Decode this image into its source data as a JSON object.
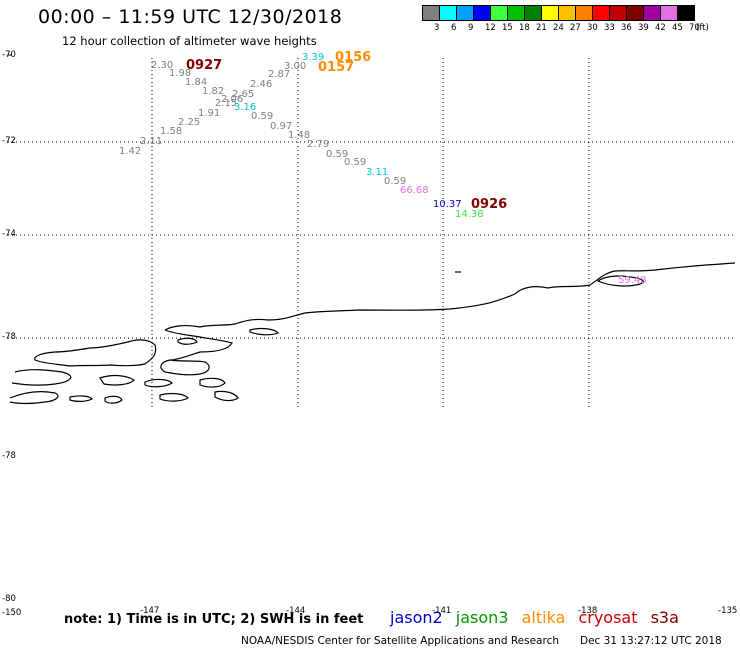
{
  "header": {
    "title": "00:00 – 11:59 UTC 12/30/2018",
    "subtitle": "12 hour collection of altimeter wave heights"
  },
  "legend": {
    "bins": [
      {
        "label": "3",
        "color": "#808080"
      },
      {
        "label": "6",
        "color": "#00ffff"
      },
      {
        "label": "9",
        "color": "#00a0ff"
      },
      {
        "label": "12",
        "color": "#0000ff"
      },
      {
        "label": "15",
        "color": "#40ff40"
      },
      {
        "label": "18",
        "color": "#00c000"
      },
      {
        "label": "21",
        "color": "#008000"
      },
      {
        "label": "24",
        "color": "#ffff00"
      },
      {
        "label": "27",
        "color": "#ffc000"
      },
      {
        "label": "30",
        "color": "#ff8000"
      },
      {
        "label": "33",
        "color": "#ff0000"
      },
      {
        "label": "36",
        "color": "#c00000"
      },
      {
        "label": "39",
        "color": "#800000"
      },
      {
        "label": "42",
        "color": "#a000a0"
      },
      {
        "label": "45",
        "color": "#e070e0"
      },
      {
        "label": "70",
        "color": "#000000"
      }
    ],
    "unit": "(ft)"
  },
  "axes": {
    "lat_labels": [
      "-70",
      "-72",
      "-74",
      "-78",
      "-78",
      "-80"
    ],
    "lon_labels": [
      "-150",
      "-147",
      "-144",
      "-141",
      "-138",
      "-135"
    ]
  },
  "observations": [
    {
      "value": "2.30",
      "color": "#808080"
    },
    {
      "value": "1.98",
      "color": "#808080"
    },
    {
      "value": "1.84",
      "color": "#808080"
    },
    {
      "value": "1.82",
      "color": "#808080"
    },
    {
      "value": "2.65",
      "color": "#808080"
    },
    {
      "value": "2.06",
      "color": "#808080"
    },
    {
      "value": "2.15",
      "color": "#808080"
    },
    {
      "value": "3.16",
      "color": "#00c8c8"
    },
    {
      "value": "1.91",
      "color": "#808080"
    },
    {
      "value": "2.25",
      "color": "#808080"
    },
    {
      "value": "1.58",
      "color": "#808080"
    },
    {
      "value": "2.11",
      "color": "#808080"
    },
    {
      "value": "1.42",
      "color": "#808080"
    },
    {
      "value": "2.46",
      "color": "#808080"
    },
    {
      "value": "2.87",
      "color": "#808080"
    },
    {
      "value": "3.00",
      "color": "#808080"
    },
    {
      "value": "3.39",
      "color": "#00c8c8"
    },
    {
      "value": "0.59",
      "color": "#808080"
    },
    {
      "value": "0.97",
      "color": "#808080"
    },
    {
      "value": "1.48",
      "color": "#808080"
    },
    {
      "value": "2.79",
      "color": "#808080"
    },
    {
      "value": "0.59",
      "color": "#808080"
    },
    {
      "value": "0.59",
      "color": "#808080"
    },
    {
      "value": "3.11",
      "color": "#00c8c8"
    },
    {
      "value": "0.59",
      "color": "#808080"
    },
    {
      "value": "66.68",
      "color": "#e070e0"
    },
    {
      "value": "10.37",
      "color": "#0000c0"
    },
    {
      "value": "14.38",
      "color": "#40e040"
    },
    {
      "value": "59.48",
      "color": "#e070e0"
    }
  ],
  "pass_ids": [
    {
      "id": "0927",
      "color": "#800000"
    },
    {
      "id": "0156",
      "color": "#ff8c00"
    },
    {
      "id": "0157",
      "color": "#ff8c00"
    },
    {
      "id": "0926",
      "color": "#800000"
    }
  ],
  "footer": {
    "note": "note:  1) Time is in UTC;  2) SWH is in feet",
    "satellites": [
      {
        "name": "jason2",
        "color": "#0000cc"
      },
      {
        "name": "jason3",
        "color": "#009900"
      },
      {
        "name": "altika",
        "color": "#ff8c00"
      },
      {
        "name": "cryosat",
        "color": "#cc0000"
      },
      {
        "name": "s3a",
        "color": "#800000"
      }
    ],
    "credit": "NOAA/NESDIS Center for Satellite Applications and Research",
    "timestamp": "Dec 31 13:27:12 UTC 2018"
  }
}
